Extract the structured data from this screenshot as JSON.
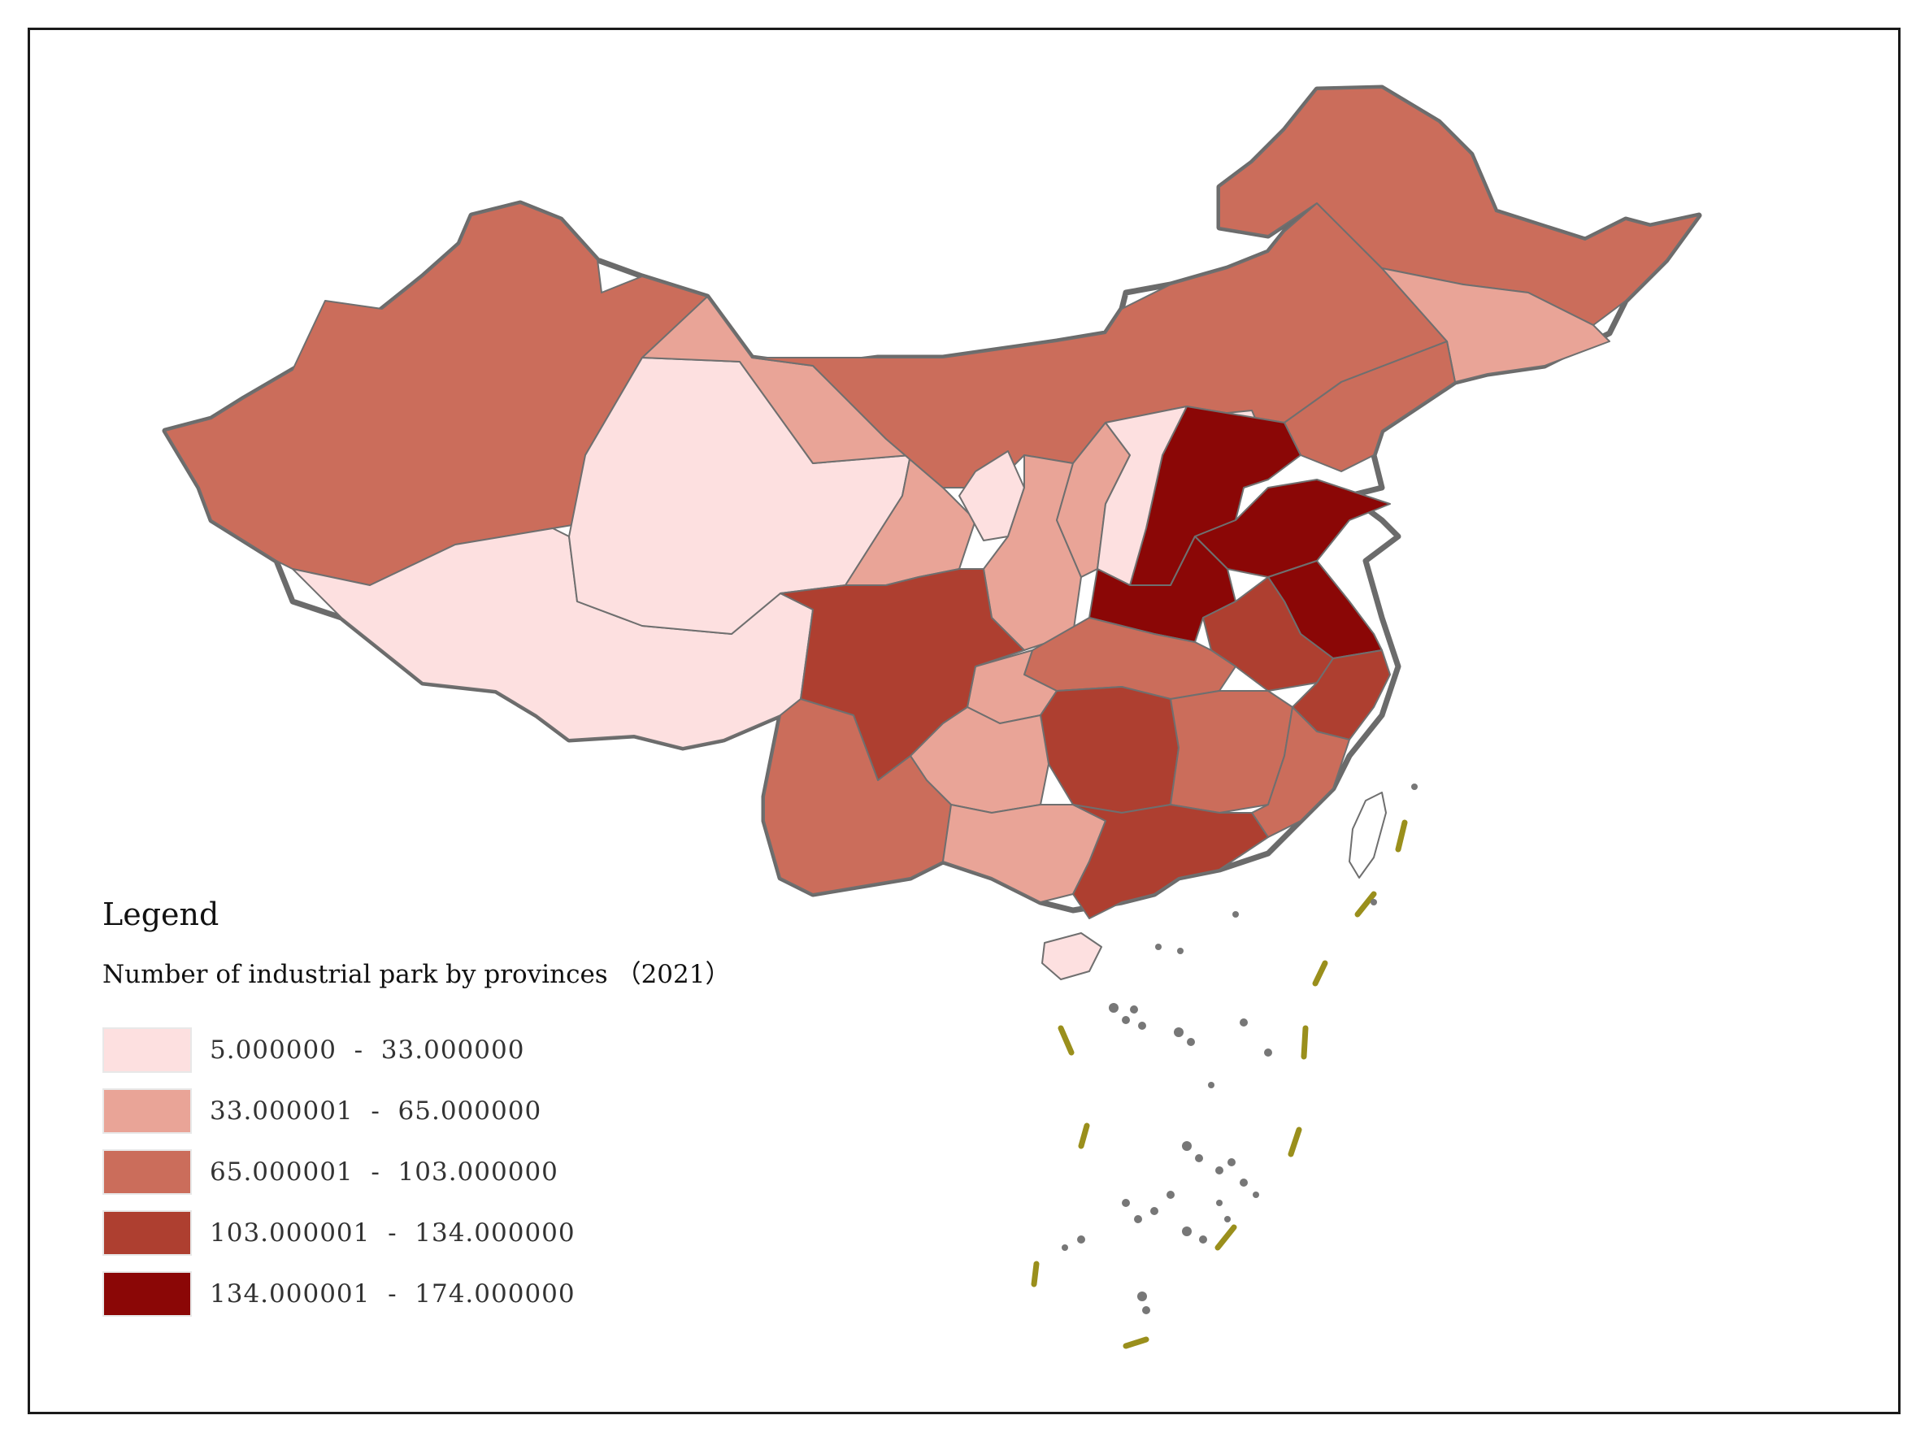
{
  "legend": {
    "title": "Legend",
    "subtitle": "Number of industrial park by provinces （2021）",
    "classes": [
      {
        "label": "5.000000  -  33.000000",
        "min": 5.0,
        "max": 33.0,
        "color": "#fde0e0"
      },
      {
        "label": "33.000001  -  65.000000",
        "min": 33.000001,
        "max": 65.0,
        "color": "#e9a497"
      },
      {
        "label": "65.000001  -  103.000000",
        "min": 65.000001,
        "max": 103.0,
        "color": "#cb6d5b"
      },
      {
        "label": "103.000001  -  134.000000",
        "min": 103.000001,
        "max": 134.0,
        "color": "#ae3f30"
      },
      {
        "label": "134.000001  -  174.000000",
        "min": 134.000001,
        "max": 174.0,
        "color": "#8b0706"
      }
    ]
  },
  "map_style": {
    "border_color": "#6f6f6f",
    "coast_color": "#6b6b6b",
    "nine_dash_color": "#9a8f1c"
  }
}
